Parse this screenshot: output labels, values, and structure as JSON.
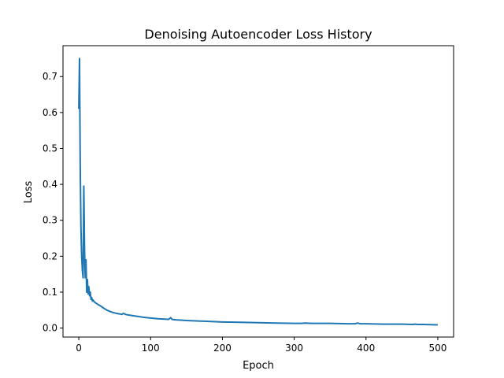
{
  "chart_data": {
    "type": "line",
    "title": "Denoising Autoencoder Loss History",
    "xlabel": "Epoch",
    "ylabel": "Loss",
    "xlim": [
      -22,
      522
    ],
    "ylim": [
      -0.025,
      0.786
    ],
    "xticks": [
      0,
      100,
      200,
      300,
      400,
      500
    ],
    "yticks": [
      0.0,
      0.1,
      0.2,
      0.3,
      0.4,
      0.5,
      0.6,
      0.7
    ],
    "ytick_labels": [
      "0.0",
      "0.1",
      "0.2",
      "0.3",
      "0.4",
      "0.5",
      "0.6",
      "0.7"
    ],
    "grid": false,
    "legend": "none",
    "line_color": "#1f77b4",
    "series": [
      {
        "x": [
          0,
          1,
          2,
          3,
          4,
          5,
          6,
          7,
          8,
          9,
          10,
          11,
          12,
          13,
          14,
          15,
          16,
          17,
          18,
          19,
          20,
          22,
          25,
          28,
          30,
          35,
          40,
          45,
          50,
          55,
          58,
          60,
          62,
          65,
          70,
          80,
          90,
          100,
          110,
          120,
          125,
          128,
          130,
          135,
          150,
          175,
          200,
          225,
          250,
          275,
          300,
          310,
          315,
          325,
          350,
          375,
          385,
          388,
          392,
          400,
          425,
          450,
          465,
          468,
          472,
          480,
          500
        ],
        "values": [
          0.61,
          0.75,
          0.45,
          0.28,
          0.2,
          0.16,
          0.14,
          0.395,
          0.22,
          0.14,
          0.19,
          0.1,
          0.135,
          0.095,
          0.115,
          0.09,
          0.1,
          0.08,
          0.085,
          0.075,
          0.078,
          0.072,
          0.068,
          0.064,
          0.062,
          0.055,
          0.049,
          0.045,
          0.042,
          0.04,
          0.039,
          0.038,
          0.041,
          0.038,
          0.036,
          0.033,
          0.03,
          0.028,
          0.026,
          0.025,
          0.024,
          0.029,
          0.024,
          0.023,
          0.021,
          0.019,
          0.017,
          0.016,
          0.015,
          0.014,
          0.013,
          0.013,
          0.014,
          0.013,
          0.013,
          0.012,
          0.012,
          0.014,
          0.012,
          0.012,
          0.011,
          0.011,
          0.01,
          0.011,
          0.01,
          0.01,
          0.009
        ]
      }
    ]
  }
}
